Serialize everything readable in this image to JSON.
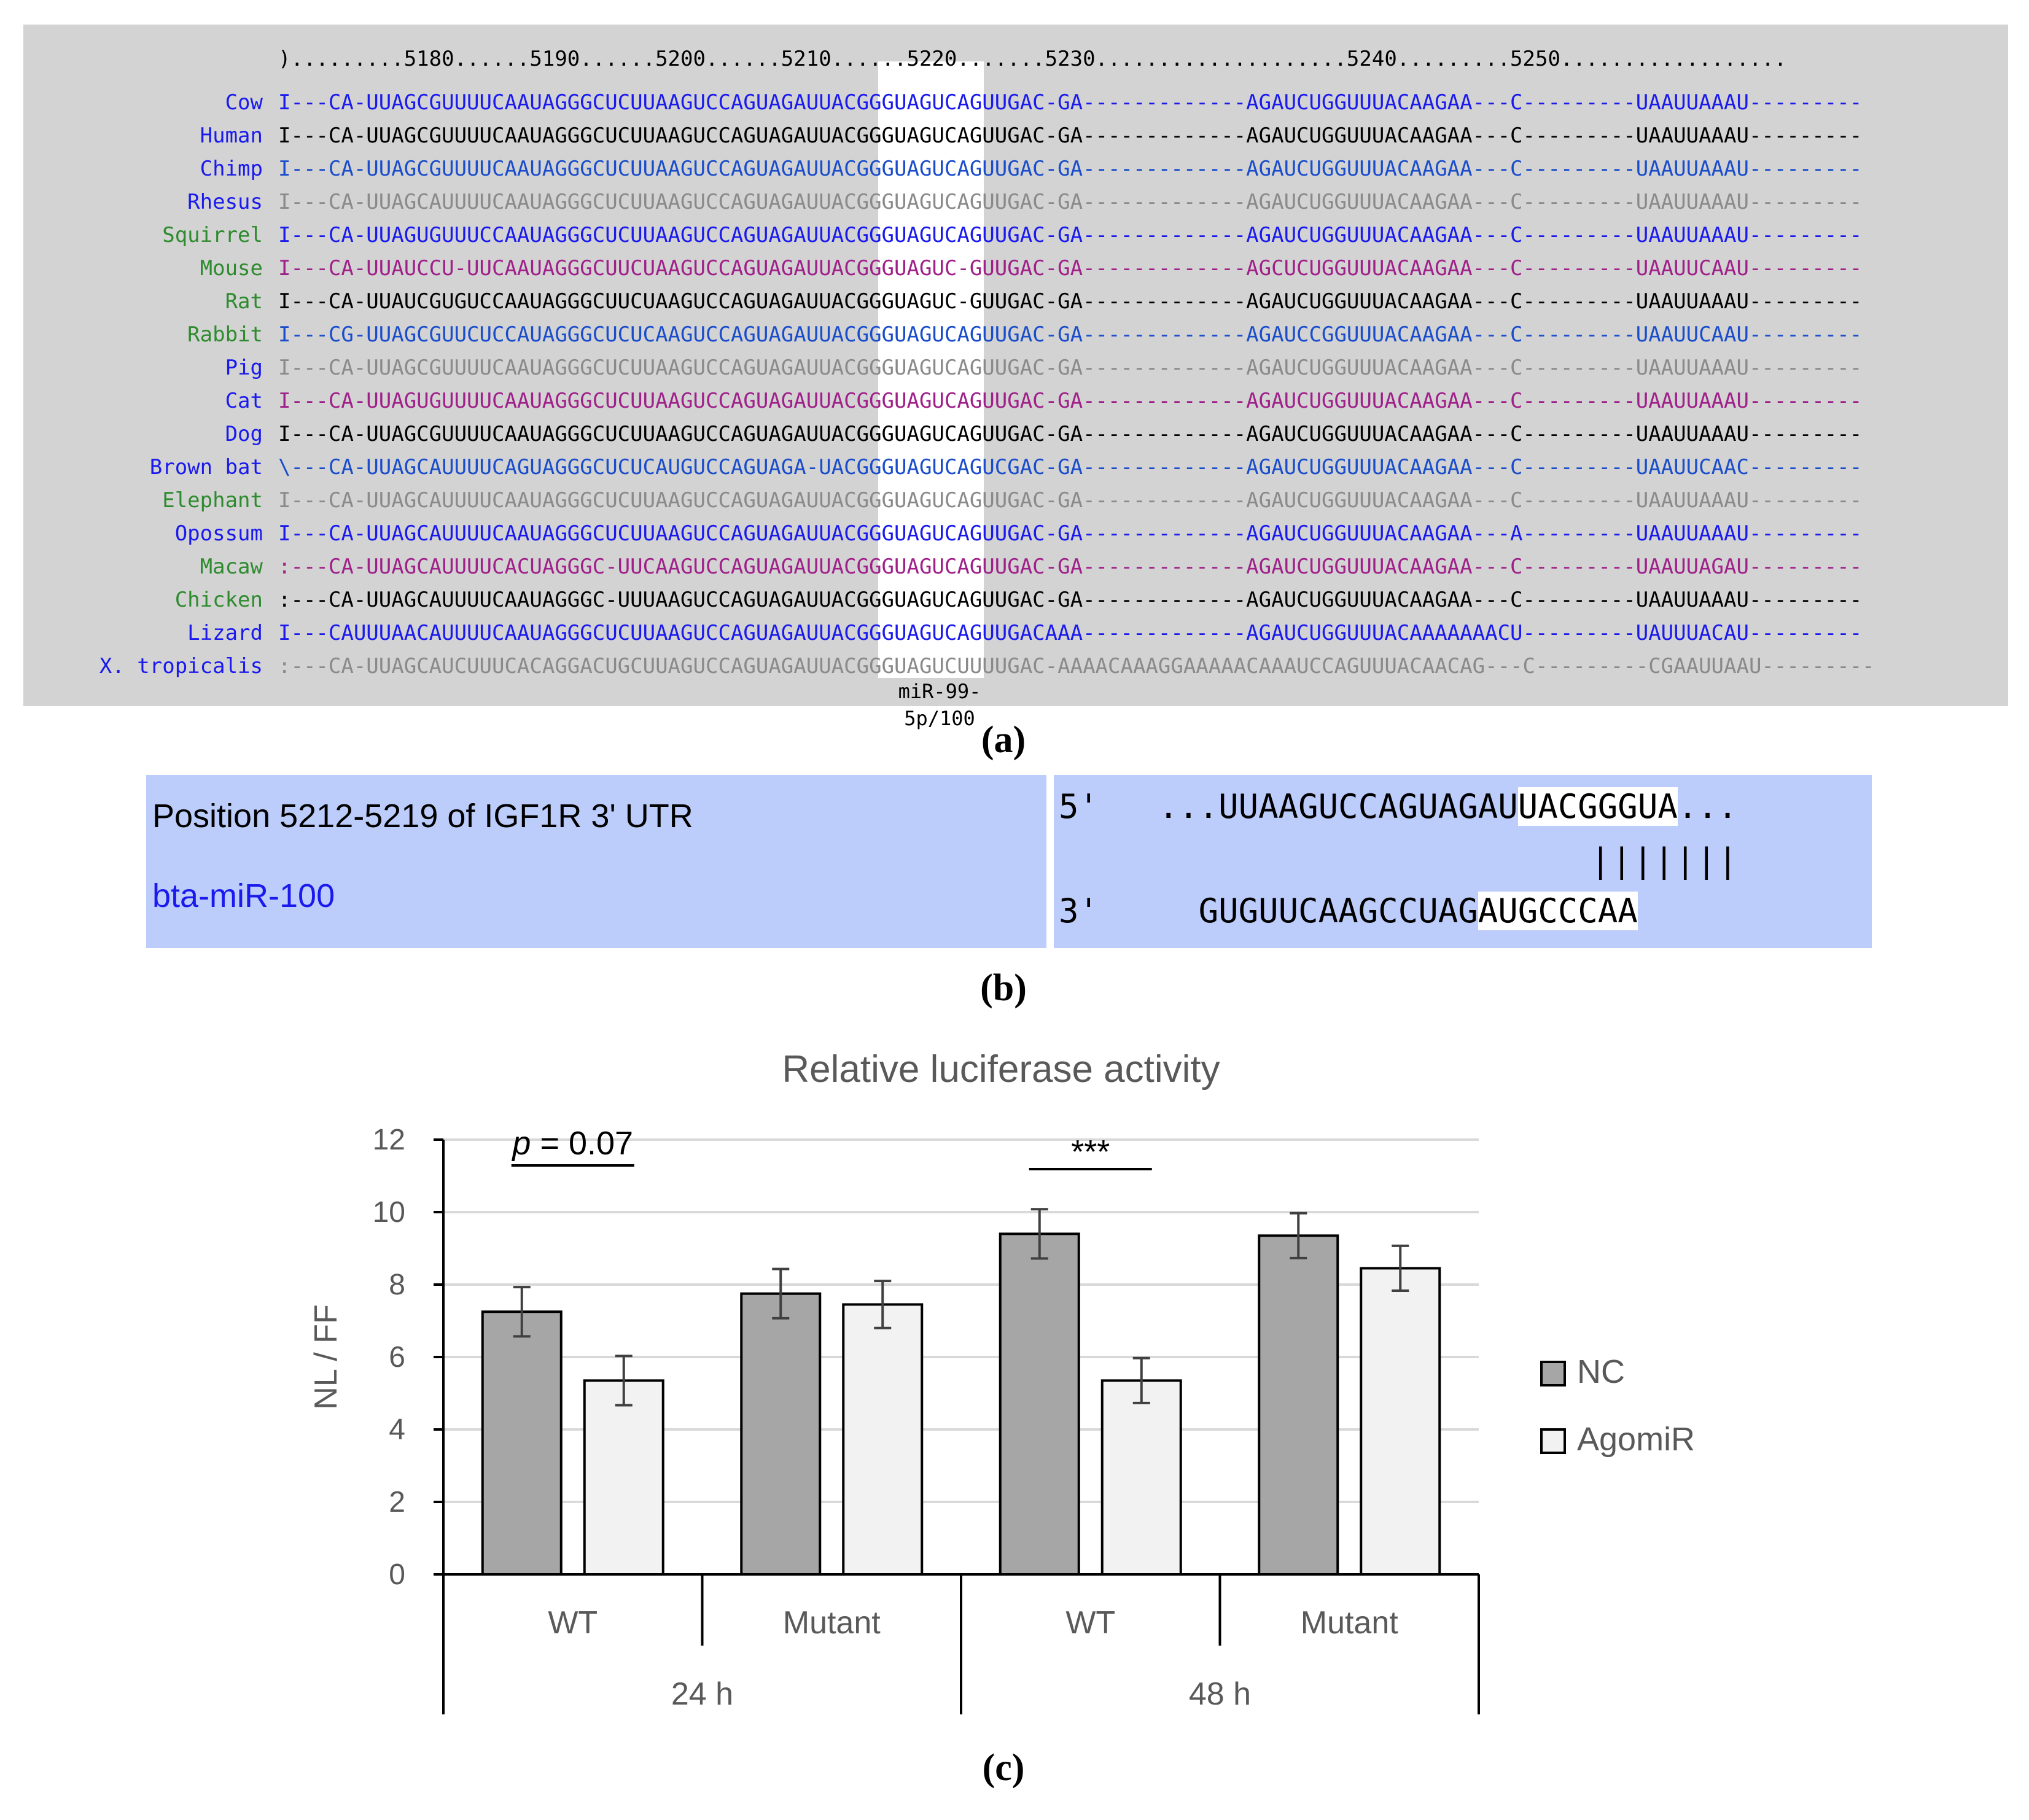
{
  "panel_a": {
    "label": "(a)",
    "ruler": ").........5180......5190......5200......5210......5220.......5230....................5240.........5250..................",
    "mirna_label": "miR-99-5p/100",
    "species": [
      {
        "name": "Cow",
        "name_color": "#1a1aee",
        "seq_color": "#1a1aee",
        "seq": "I---CA-UUAGCGUUUUCAAUAGGGCUCUUAAGUCCAGUAGAUUACGGGUAGUCAGUUGAC-GA-------------AGAUCUGGUUUACAAGAA---C---------UAAUUAAAU---------"
      },
      {
        "name": "Human",
        "name_color": "#1a1aee",
        "seq_color": "#000000",
        "seq": "I---CA-UUAGCGUUUUCAAUAGGGCUCUUAAGUCCAGUAGAUUACGGGUAGUCAGUUGAC-GA-------------AGAUCUGGUUUACAAGAA---C---------UAAUUAAAU---------"
      },
      {
        "name": "Chimp",
        "name_color": "#1a1aee",
        "seq_color": "#1a4dcc",
        "seq": "I---CA-UUAGCGUUUUCAAUAGGGCUCUUAAGUCCAGUAGAUUACGGGUAGUCAGUUGAC-GA-------------AGAUCUGGUUUACAAGAA---C---------UAAUUAAAU---------"
      },
      {
        "name": "Rhesus",
        "name_color": "#1a1aee",
        "seq_color": "#8a8a8a",
        "seq": "I---CA-UUAGCAUUUUCAAUAGGGCUCUUAAGUCCAGUAGAUUACGGGUAGUCAGUUGAC-GA-------------AGAUCUGGUUUACAAGAA---C---------UAAUUAAAU---------"
      },
      {
        "name": "Squirrel",
        "name_color": "#2e8b2e",
        "seq_color": "#1a1aee",
        "seq": "I---CA-UUAGUGUUUCCAAUAGGGCUCUUAAGUCCAGUAGAUUACGGGUAGUCAGUUGAC-GA-------------AGAUCUGGUUUACAAGAA---C---------UAAUUAAAU---------"
      },
      {
        "name": "Mouse",
        "name_color": "#2e8b2e",
        "seq_color": "#a0208a",
        "seq": "I---CA-UUAUCCU-UUCAAUAGGGCUUCUAAGUCCAGUAGAUUACGGGUAGUC-GUUGAC-GA-------------AGCUCUGGUUUACAAGAA---C---------UAAUUCAAU---------"
      },
      {
        "name": "Rat",
        "name_color": "#2e8b2e",
        "seq_color": "#000000",
        "seq": "I---CA-UUAUCGUGUCCAAUAGGGCUUCUAAGUCCAGUAGAUUACGGGUAGUC-GUUGAC-GA-------------AGAUCUGGUUUACAAGAA---C---------UAAUUAAAU---------"
      },
      {
        "name": "Rabbit",
        "name_color": "#2e8b2e",
        "seq_color": "#1a4dcc",
        "seq": "I---CG-UUAGCGUUCUCCAUAGGGCUCUCAAGUCCAGUAGAUUACGGGUAGUCAGUUGAC-GA-------------AGAUCCGGUUUACAAGAA---C---------UAAUUCAAU---------"
      },
      {
        "name": "Pig",
        "name_color": "#1a1aee",
        "seq_color": "#8a8a8a",
        "seq": "I---CA-UUAGCGUUUUCAAUAGGGCUCUUAAGUCCAGUAGAUUACGGGUAGUCAGUUGAC-GA-------------AGAUCUGGUUUACAAGAA---C---------UAAUUAAAU---------"
      },
      {
        "name": "Cat",
        "name_color": "#1a1aee",
        "seq_color": "#a0208a",
        "seq": "I---CA-UUAGUGUUUUCAAUAGGGCUCUUAAGUCCAGUAGAUUACGGGUAGUCAGUUGAC-GA-------------AGAUCUGGUUUACAAGAA---C---------UAAUUAAAU---------"
      },
      {
        "name": "Dog",
        "name_color": "#1a1aee",
        "seq_color": "#000000",
        "seq": "I---CA-UUAGCGUUUUCAAUAGGGCUCUUAAGUCCAGUAGAUUACGGGUAGUCAGUUGAC-GA-------------AGAUCUGGUUUACAAGAA---C---------UAAUUAAAU---------"
      },
      {
        "name": "Brown bat",
        "name_color": "#1a1aee",
        "seq_color": "#1a4dcc",
        "seq": "\\---CA-UUAGCAUUUUCAGUAGGGCUCUCAUGUCCAGUAGA-UACGGGUAGUCAGUCGAC-GA-------------AGAUCUGGUUUACAAGAA---C---------UAAUUCAAC---------"
      },
      {
        "name": "Elephant",
        "name_color": "#2e8b2e",
        "seq_color": "#8a8a8a",
        "seq": "I---CA-UUAGCAUUUUCAAUAGGGCUCUUAAGUCCAGUAGAUUACGGGUAGUCAGUUGAC-GA-------------AGAUCUGGUUUACAAGAA---C---------UAAUUAAAU---------"
      },
      {
        "name": "Opossum",
        "name_color": "#1a1aee",
        "seq_color": "#1a1aee",
        "seq": "I---CA-UUAGCAUUUUCAAUAGGGCUCUUAAGUCCAGUAGAUUACGGGUAGUCAGUUGAC-GA-------------AGAUCUGGUUUACAAGAA---A---------UAAUUAAAU---------"
      },
      {
        "name": "Macaw",
        "name_color": "#2e8b2e",
        "seq_color": "#a0208a",
        "seq": ":---CA-UUAGCAUUUUCACUAGGGC-UUCAAGUCCAGUAGAUUACGGGUAGUCAGUUGAC-GA-------------AGAUCUGGUUUACAAGAA---C---------UAAUUAGAU---------"
      },
      {
        "name": "Chicken",
        "name_color": "#2e8b2e",
        "seq_color": "#000000",
        "seq": ":---CA-UUAGCAUUUUCAAUAGGGC-UUUAAGUCCAGUAGAUUACGGGUAGUCAGUUGAC-GA-------------AGAUCUGGUUUACAAGAA---C---------UAAUUAAAU---------"
      },
      {
        "name": "Lizard",
        "name_color": "#1a1aee",
        "seq_color": "#1a1aee",
        "seq": "I---CAUUUAACAUUUUCAAUAGGGCUCUUAAGUCCAGUAGAUUACGGGUAGUCAGUUGACAAA-------------AGAUCUGGUUUACAAAAAAACU---------UAUUUACAU---------"
      },
      {
        "name": "X. tropicalis",
        "name_color": "#1a1aee",
        "seq_color": "#8a8a8a",
        "seq": ":---CA-UUAGCAUCUUUCACAGGACUGCUUAGUCCAGUAGAUUACGGGUAGUCUUUUGAC-AAAACAAAGGAAAAACAAAUCCAGUUUACAACAG---C---------CGAAUUAAU---------"
      }
    ]
  },
  "panel_b": {
    "label": "(b)",
    "position_text": "Position 5212-5219 of IGF1R 3' UTR",
    "mirna_name": "bta-miR-100",
    "utr_prefix": "5'   ...UUAAGUCCAGUAGAU",
    "utr_site": "UACGGGUA",
    "utr_suffix": "...",
    "pairing": "|||||||",
    "mirna_prefix": "3'     GUGUUCAAGCCUAG",
    "mirna_seed": "AUGCCCAA"
  },
  "panel_c": {
    "label": "(c)"
  },
  "chart_data": {
    "type": "bar",
    "title": "Relative luciferase activity",
    "ylabel": "NL / FF",
    "xlabel": "",
    "ylim": [
      0,
      12
    ],
    "yticks": [
      "0",
      "2",
      "4",
      "6",
      "8",
      "10",
      "12"
    ],
    "categories": [
      "WT",
      "Mutant",
      "WT",
      "Mutant"
    ],
    "groups": [
      "24 h",
      "48 h"
    ],
    "series": [
      {
        "name": "NC",
        "color": "#a6a6a6",
        "values": [
          7.25,
          7.75,
          9.4,
          9.35
        ],
        "errors": [
          0.68,
          0.68,
          0.68,
          0.62
        ]
      },
      {
        "name": "AgomiR",
        "color": "#f2f2f2",
        "values": [
          5.35,
          7.45,
          5.35,
          8.45
        ],
        "errors": [
          0.68,
          0.65,
          0.62,
          0.62
        ]
      }
    ],
    "annotations": [
      {
        "text": "p = 0.07",
        "category_index": 0
      },
      {
        "text": "***",
        "category_index": 2
      }
    ],
    "legend_position": "right",
    "grid": true
  }
}
